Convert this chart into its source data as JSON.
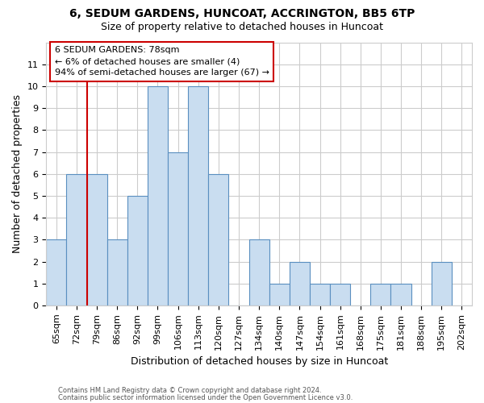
{
  "title_line1": "6, SEDUM GARDENS, HUNCOAT, ACCRINGTON, BB5 6TP",
  "title_line2": "Size of property relative to detached houses in Huncoat",
  "xlabel": "Distribution of detached houses by size in Huncoat",
  "ylabel": "Number of detached properties",
  "categories": [
    "65sqm",
    "72sqm",
    "79sqm",
    "86sqm",
    "92sqm",
    "99sqm",
    "106sqm",
    "113sqm",
    "120sqm",
    "127sqm",
    "134sqm",
    "140sqm",
    "147sqm",
    "154sqm",
    "161sqm",
    "168sqm",
    "175sqm",
    "181sqm",
    "188sqm",
    "195sqm",
    "202sqm"
  ],
  "values": [
    3,
    6,
    6,
    3,
    5,
    10,
    7,
    10,
    6,
    0,
    3,
    1,
    2,
    1,
    1,
    0,
    1,
    1,
    0,
    2,
    0
  ],
  "bar_color": "#c9ddf0",
  "bar_edge_color": "#5a8fc0",
  "annotation_title": "6 SEDUM GARDENS: 78sqm",
  "annotation_line2": "← 6% of detached houses are smaller (4)",
  "annotation_line3": "94% of semi-detached houses are larger (67) →",
  "annotation_box_color": "#ffffff",
  "annotation_box_edge": "#cc0000",
  "vline_color": "#cc0000",
  "footer_line1": "Contains HM Land Registry data © Crown copyright and database right 2024.",
  "footer_line2": "Contains public sector information licensed under the Open Government Licence v3.0.",
  "ylim": [
    0,
    12
  ],
  "yticks": [
    0,
    1,
    2,
    3,
    4,
    5,
    6,
    7,
    8,
    9,
    10,
    11
  ],
  "bg_color": "#ffffff",
  "grid_color": "#cccccc",
  "title1_fontsize": 10,
  "title2_fontsize": 9,
  "ylabel_fontsize": 9,
  "xlabel_fontsize": 9,
  "tick_fontsize": 8,
  "ann_fontsize": 8,
  "footer_fontsize": 6
}
